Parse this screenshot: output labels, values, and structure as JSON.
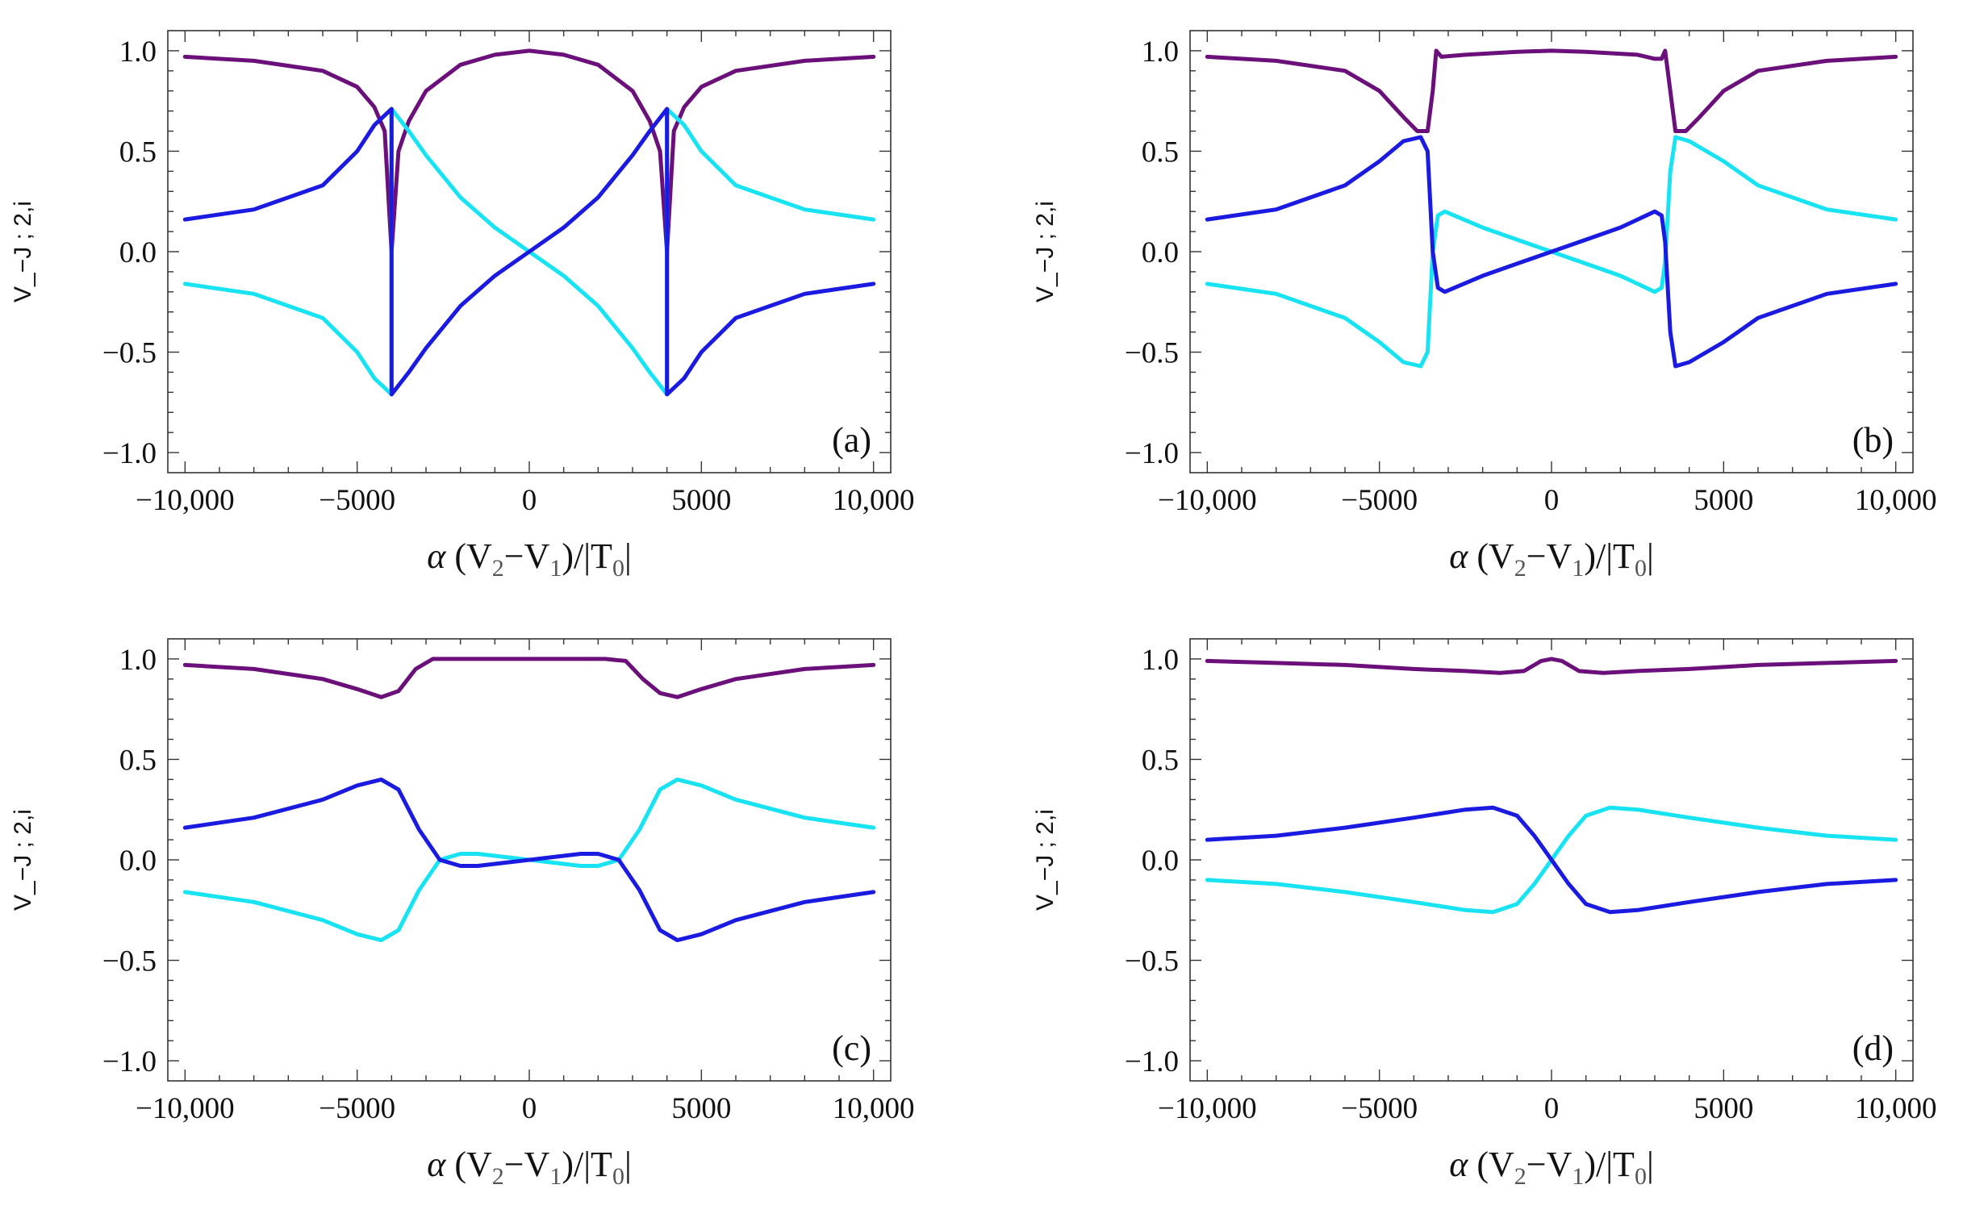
{
  "chart_data": [
    {
      "type": "line",
      "panel_label": "(a)",
      "xlabel": {
        "symbol": "α",
        "text": " (V",
        "sub1": "2",
        "mid": "−V",
        "sub2": "1",
        "end": ")/|T",
        "sub3": "0",
        "close": "|"
      },
      "ylabel": "V_−J ; 2,i",
      "xlim": [
        -10500,
        10500
      ],
      "ylim": [
        -1.1,
        1.1
      ],
      "xticks": [
        -10000,
        -5000,
        0,
        5000,
        10000
      ],
      "xtick_labels": [
        "−10,000",
        "−5000",
        "0",
        "5000",
        "10,000"
      ],
      "yticks": [
        -1.0,
        -0.5,
        0.0,
        0.5,
        1.0
      ],
      "ytick_labels": [
        "−1.0",
        "−0.5",
        "0.0",
        "0.5",
        "1.0"
      ],
      "series": [
        {
          "name": "purple",
          "color": "#6b0f7a",
          "x": [
            -10000,
            -8000,
            -6000,
            -5000,
            -4500,
            -4200,
            -4000,
            -3800,
            -3500,
            -3000,
            -2000,
            -1000,
            0,
            1000,
            2000,
            3000,
            3500,
            3800,
            4000,
            4200,
            4500,
            5000,
            6000,
            8000,
            10000
          ],
          "y": [
            0.97,
            0.95,
            0.9,
            0.82,
            0.72,
            0.6,
            0.0,
            0.5,
            0.65,
            0.8,
            0.93,
            0.98,
            1.0,
            0.98,
            0.93,
            0.8,
            0.65,
            0.5,
            0.0,
            0.6,
            0.72,
            0.82,
            0.9,
            0.95,
            0.97
          ]
        },
        {
          "name": "cyan",
          "color": "#18e3f2",
          "x": [
            -10000,
            -8000,
            -6000,
            -5000,
            -4500,
            -4000,
            -4000,
            -3500,
            -3000,
            -2000,
            -1000,
            0,
            1000,
            2000,
            3000,
            3500,
            4000,
            4000,
            4500,
            5000,
            6000,
            8000,
            10000
          ],
          "y": [
            -0.16,
            -0.21,
            -0.33,
            -0.5,
            -0.63,
            -0.71,
            0.71,
            0.6,
            0.48,
            0.27,
            0.12,
            0.0,
            -0.12,
            -0.27,
            -0.48,
            -0.6,
            -0.71,
            0.71,
            0.63,
            0.5,
            0.33,
            0.21,
            0.16
          ]
        },
        {
          "name": "blue",
          "color": "#1a1ae0",
          "x": [
            -10000,
            -8000,
            -6000,
            -5000,
            -4500,
            -4000,
            -4000,
            -3500,
            -3000,
            -2000,
            -1000,
            0,
            1000,
            2000,
            3000,
            3500,
            4000,
            4000,
            4500,
            5000,
            6000,
            8000,
            10000
          ],
          "y": [
            0.16,
            0.21,
            0.33,
            0.5,
            0.63,
            0.71,
            -0.71,
            -0.6,
            -0.48,
            -0.27,
            -0.12,
            0.0,
            0.12,
            0.27,
            0.48,
            0.6,
            0.71,
            -0.71,
            -0.63,
            -0.5,
            -0.33,
            -0.21,
            -0.16
          ]
        }
      ]
    },
    {
      "type": "line",
      "panel_label": "(b)",
      "xlabel": {
        "symbol": "α",
        "text": " (V",
        "sub1": "2",
        "mid": "−V",
        "sub2": "1",
        "end": ")/|T",
        "sub3": "0",
        "close": "|"
      },
      "ylabel": "V_−J ; 2,i",
      "xlim": [
        -10500,
        10500
      ],
      "ylim": [
        -1.1,
        1.1
      ],
      "xticks": [
        -10000,
        -5000,
        0,
        5000,
        10000
      ],
      "xtick_labels": [
        "−10,000",
        "−5000",
        "0",
        "5000",
        "10,000"
      ],
      "yticks": [
        -1.0,
        -0.5,
        0.0,
        0.5,
        1.0
      ],
      "ytick_labels": [
        "−1.0",
        "−0.5",
        "0.0",
        "0.5",
        "1.0"
      ],
      "series": [
        {
          "name": "purple",
          "color": "#6b0f7a",
          "x": [
            -10000,
            -8000,
            -6000,
            -5000,
            -4300,
            -3900,
            -3600,
            -3450,
            -3350,
            -3200,
            -2500,
            -1000,
            0,
            1000,
            2500,
            3000,
            3200,
            3300,
            3450,
            3600,
            3900,
            4300,
            5000,
            6000,
            8000,
            10000
          ],
          "y": [
            0.97,
            0.95,
            0.9,
            0.8,
            0.67,
            0.6,
            0.6,
            0.8,
            1.0,
            0.97,
            0.98,
            0.995,
            1.0,
            0.995,
            0.98,
            0.96,
            0.96,
            1.0,
            0.8,
            0.6,
            0.6,
            0.67,
            0.8,
            0.9,
            0.95,
            0.97
          ]
        },
        {
          "name": "cyan",
          "color": "#18e3f2",
          "x": [
            -10000,
            -8000,
            -6000,
            -5000,
            -4300,
            -3800,
            -3600,
            -3450,
            -3300,
            -3100,
            -2000,
            -1000,
            0,
            1000,
            2000,
            3000,
            3200,
            3300,
            3450,
            3600,
            4000,
            5000,
            6000,
            8000,
            10000
          ],
          "y": [
            -0.16,
            -0.21,
            -0.33,
            -0.45,
            -0.55,
            -0.57,
            -0.5,
            0.0,
            0.18,
            0.2,
            0.12,
            0.06,
            0.0,
            -0.06,
            -0.12,
            -0.2,
            -0.18,
            -0.05,
            0.4,
            0.57,
            0.55,
            0.45,
            0.33,
            0.21,
            0.16
          ]
        },
        {
          "name": "blue",
          "color": "#1a1ae0",
          "x": [
            -10000,
            -8000,
            -6000,
            -5000,
            -4300,
            -3800,
            -3600,
            -3450,
            -3300,
            -3100,
            -2000,
            -1000,
            0,
            1000,
            2000,
            3000,
            3200,
            3300,
            3450,
            3600,
            4000,
            5000,
            6000,
            8000,
            10000
          ],
          "y": [
            0.16,
            0.21,
            0.33,
            0.45,
            0.55,
            0.57,
            0.5,
            0.0,
            -0.18,
            -0.2,
            -0.12,
            -0.06,
            0.0,
            0.06,
            0.12,
            0.2,
            0.18,
            0.05,
            -0.4,
            -0.57,
            -0.55,
            -0.45,
            -0.33,
            -0.21,
            -0.16
          ]
        }
      ]
    },
    {
      "type": "line",
      "panel_label": "(c)",
      "xlabel": {
        "symbol": "α",
        "text": " (V",
        "sub1": "2",
        "mid": "−V",
        "sub2": "1",
        "end": ")/|T",
        "sub3": "0",
        "close": "|"
      },
      "ylabel": "V_−J ; 2,i",
      "xlim": [
        -10500,
        10500
      ],
      "ylim": [
        -1.1,
        1.1
      ],
      "xticks": [
        -10000,
        -5000,
        0,
        5000,
        10000
      ],
      "xtick_labels": [
        "−10,000",
        "−5000",
        "0",
        "5000",
        "10,000"
      ],
      "yticks": [
        -1.0,
        -0.5,
        0.0,
        0.5,
        1.0
      ],
      "ytick_labels": [
        "−1.0",
        "−0.5",
        "0.0",
        "0.5",
        "1.0"
      ],
      "series": [
        {
          "name": "purple",
          "color": "#6b0f7a",
          "x": [
            -10000,
            -8000,
            -6000,
            -5000,
            -4300,
            -3800,
            -3300,
            -2800,
            -2200,
            -1000,
            0,
            1000,
            2200,
            2800,
            3300,
            3800,
            4300,
            5000,
            6000,
            8000,
            10000
          ],
          "y": [
            0.97,
            0.95,
            0.9,
            0.85,
            0.81,
            0.84,
            0.95,
            1.0,
            1.0,
            1.0,
            1.0,
            1.0,
            1.0,
            0.99,
            0.9,
            0.83,
            0.81,
            0.85,
            0.9,
            0.95,
            0.97
          ]
        },
        {
          "name": "cyan",
          "color": "#18e3f2",
          "x": [
            -10000,
            -8000,
            -6000,
            -5000,
            -4300,
            -3800,
            -3200,
            -2600,
            -2000,
            -1500,
            -500,
            500,
            1500,
            2000,
            2600,
            3200,
            3800,
            4300,
            5000,
            6000,
            8000,
            10000
          ],
          "y": [
            -0.16,
            -0.21,
            -0.3,
            -0.37,
            -0.4,
            -0.35,
            -0.15,
            0.0,
            0.03,
            0.03,
            0.01,
            -0.01,
            -0.03,
            -0.03,
            0.0,
            0.15,
            0.35,
            0.4,
            0.37,
            0.3,
            0.21,
            0.16
          ]
        },
        {
          "name": "blue",
          "color": "#1a1ae0",
          "x": [
            -10000,
            -8000,
            -6000,
            -5000,
            -4300,
            -3800,
            -3200,
            -2600,
            -2000,
            -1500,
            -500,
            500,
            1500,
            2000,
            2600,
            3200,
            3800,
            4300,
            5000,
            6000,
            8000,
            10000
          ],
          "y": [
            0.16,
            0.21,
            0.3,
            0.37,
            0.4,
            0.35,
            0.15,
            0.0,
            -0.03,
            -0.03,
            -0.01,
            0.01,
            0.03,
            0.03,
            0.0,
            -0.15,
            -0.35,
            -0.4,
            -0.37,
            -0.3,
            -0.21,
            -0.16
          ]
        }
      ]
    },
    {
      "type": "line",
      "panel_label": "(d)",
      "xlabel": {
        "symbol": "α",
        "text": " (V",
        "sub1": "2",
        "mid": "−V",
        "sub2": "1",
        "end": ")/|T",
        "sub3": "0",
        "close": "|"
      },
      "ylabel": "V_−J ; 2,i",
      "xlim": [
        -10500,
        10500
      ],
      "ylim": [
        -1.1,
        1.1
      ],
      "xticks": [
        -10000,
        -5000,
        0,
        5000,
        10000
      ],
      "xtick_labels": [
        "−10,000",
        "−5000",
        "0",
        "5000",
        "10,000"
      ],
      "yticks": [
        -1.0,
        -0.5,
        0.0,
        0.5,
        1.0
      ],
      "ytick_labels": [
        "−1.0",
        "−0.5",
        "0.0",
        "0.5",
        "1.0"
      ],
      "series": [
        {
          "name": "purple",
          "color": "#6b0f7a",
          "x": [
            -10000,
            -8000,
            -6000,
            -4000,
            -2500,
            -1500,
            -800,
            -300,
            0,
            300,
            800,
            1500,
            2500,
            4000,
            6000,
            8000,
            10000
          ],
          "y": [
            0.99,
            0.98,
            0.97,
            0.95,
            0.94,
            0.93,
            0.94,
            0.99,
            1.0,
            0.99,
            0.94,
            0.93,
            0.94,
            0.95,
            0.97,
            0.98,
            0.99
          ]
        },
        {
          "name": "cyan",
          "color": "#18e3f2",
          "x": [
            -10000,
            -8000,
            -6000,
            -4000,
            -2500,
            -1700,
            -1000,
            -500,
            0,
            500,
            1000,
            1700,
            2500,
            4000,
            6000,
            8000,
            10000
          ],
          "y": [
            -0.1,
            -0.12,
            -0.16,
            -0.21,
            -0.25,
            -0.26,
            -0.22,
            -0.12,
            0.0,
            0.12,
            0.22,
            0.26,
            0.25,
            0.21,
            0.16,
            0.12,
            0.1
          ]
        },
        {
          "name": "blue",
          "color": "#1a1ae0",
          "x": [
            -10000,
            -8000,
            -6000,
            -4000,
            -2500,
            -1700,
            -1000,
            -500,
            0,
            500,
            1000,
            1700,
            2500,
            4000,
            6000,
            8000,
            10000
          ],
          "y": [
            0.1,
            0.12,
            0.16,
            0.21,
            0.25,
            0.26,
            0.22,
            0.12,
            0.0,
            -0.12,
            -0.22,
            -0.26,
            -0.25,
            -0.21,
            -0.16,
            -0.12,
            -0.1
          ]
        }
      ]
    }
  ]
}
